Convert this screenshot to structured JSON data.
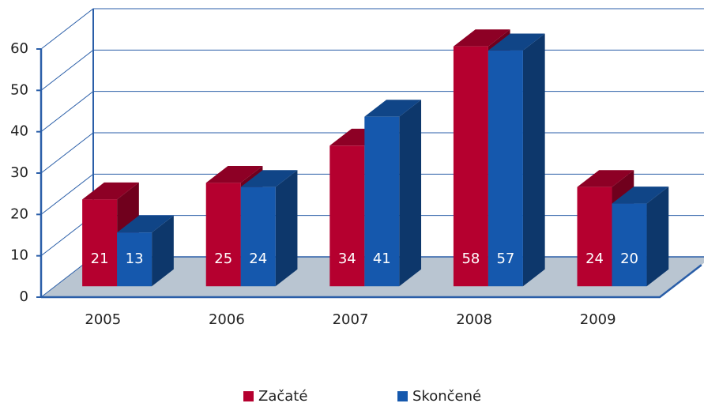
{
  "chart_data": {
    "type": "bar3d",
    "categories": [
      "2005",
      "2006",
      "2007",
      "2008",
      "2009"
    ],
    "series": [
      {
        "name": "Začaté",
        "color": "#b5002f",
        "values": [
          21,
          25,
          34,
          58,
          24
        ]
      },
      {
        "name": "Skončené",
        "color": "#1558ad",
        "values": [
          13,
          24,
          41,
          57,
          20
        ]
      }
    ],
    "ylim": [
      0,
      60
    ],
    "yticks": [
      0,
      10,
      20,
      30,
      40,
      50,
      60
    ],
    "grid": true,
    "legend": "bottom"
  }
}
